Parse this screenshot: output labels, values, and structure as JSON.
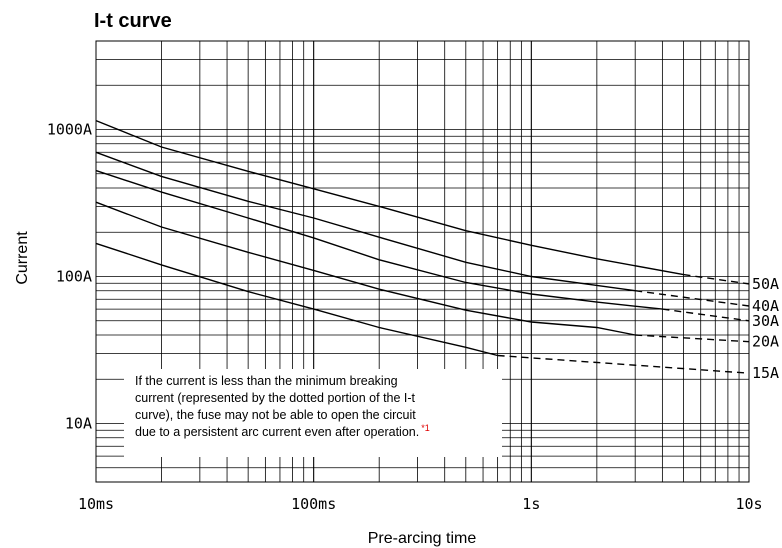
{
  "chart_data": {
    "type": "line",
    "title": "I-t curve",
    "xlabel": "Pre-arcing time",
    "ylabel": "Current",
    "x_scale": "log",
    "y_scale": "log",
    "xlim": [
      "10ms",
      "10s"
    ],
    "ylim": [
      "4A",
      "4000A"
    ],
    "x_ticks": [
      "10ms",
      "100ms",
      "1s",
      "10s"
    ],
    "y_ticks": [
      "10A",
      "100A",
      "1000A"
    ],
    "grid": true,
    "series": [
      {
        "name": "50A",
        "points": [
          [
            0.01,
            1150
          ],
          [
            0.02,
            760
          ],
          [
            0.05,
            520
          ],
          [
            0.1,
            395
          ],
          [
            0.2,
            300
          ],
          [
            0.5,
            205
          ],
          [
            1,
            163
          ],
          [
            2,
            132
          ],
          [
            5,
            103
          ]
        ],
        "dashed": [
          [
            5,
            103
          ],
          [
            10,
            89
          ]
        ]
      },
      {
        "name": "40A",
        "points": [
          [
            0.01,
            700
          ],
          [
            0.02,
            480
          ],
          [
            0.05,
            325
          ],
          [
            0.1,
            250
          ],
          [
            0.2,
            185
          ],
          [
            0.5,
            125
          ],
          [
            1,
            100
          ],
          [
            2,
            87
          ],
          [
            3,
            80
          ]
        ],
        "dashed": [
          [
            3,
            80
          ],
          [
            10,
            63
          ]
        ]
      },
      {
        "name": "30A",
        "points": [
          [
            0.01,
            525
          ],
          [
            0.02,
            375
          ],
          [
            0.05,
            250
          ],
          [
            0.1,
            183
          ],
          [
            0.2,
            130
          ],
          [
            0.5,
            91
          ],
          [
            1,
            76
          ],
          [
            2,
            67
          ],
          [
            4,
            60
          ]
        ],
        "dashed": [
          [
            4,
            60
          ],
          [
            10,
            50
          ]
        ]
      },
      {
        "name": "20A",
        "points": [
          [
            0.01,
            320
          ],
          [
            0.02,
            217
          ],
          [
            0.05,
            146
          ],
          [
            0.1,
            110
          ],
          [
            0.2,
            82
          ],
          [
            0.5,
            59
          ],
          [
            1,
            49
          ],
          [
            2,
            45
          ],
          [
            3,
            40
          ]
        ],
        "dashed": [
          [
            3,
            40
          ],
          [
            10,
            36
          ]
        ]
      },
      {
        "name": "15A",
        "points": [
          [
            0.01,
            168
          ],
          [
            0.02,
            120
          ],
          [
            0.05,
            79
          ],
          [
            0.1,
            60
          ],
          [
            0.2,
            45
          ],
          [
            0.5,
            33
          ],
          [
            0.7,
            29
          ]
        ],
        "dashed": [
          [
            0.7,
            29
          ],
          [
            10,
            22
          ]
        ]
      }
    ],
    "note": {
      "lines": [
        "If the current is less than the minimum breaking",
        "current (represented by the dotted portion of the I-t",
        "curve), the fuse may not be able to open the circuit",
        "due to a persistent arc current even after operation."
      ],
      "ref": "*1"
    },
    "colors": {
      "curve": "#000000",
      "grid": "#000000",
      "ref": "#e00000"
    }
  }
}
